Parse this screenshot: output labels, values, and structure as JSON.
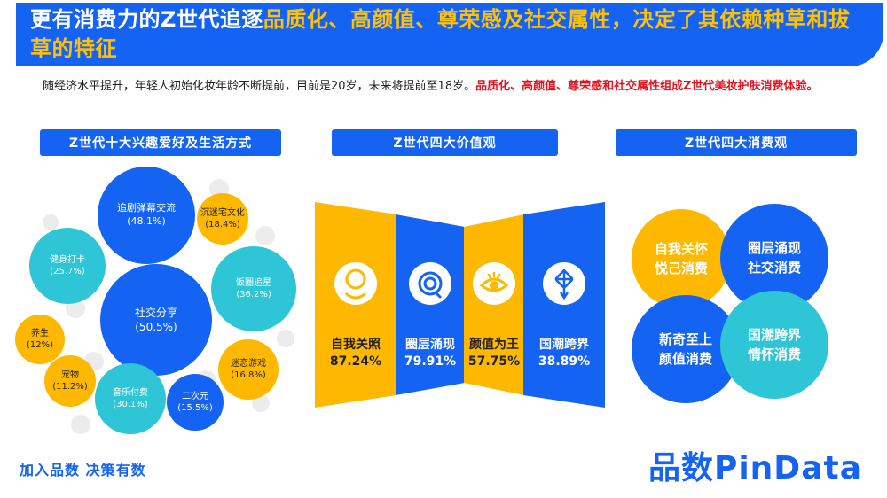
{
  "header": {
    "title_plain": "更有消费力的Z世代追逐",
    "title_highlight": "品质化、高颜值、尊荣感及社交属性，决定了其依赖种草和拔草的特征"
  },
  "intro": {
    "text_plain": "随经济水平提升，年轻人初始化妆年龄不断提前，目前是20岁，未来将提前至18岁。",
    "text_red": "品质化、高颜值、尊荣感和社交属性组成Z世代美妆护肤消费体验。"
  },
  "sections": {
    "hobbies": "Z世代十大兴趣爱好及生活方式",
    "values": "Z世代四大价值观",
    "consumption": "Z世代四大消费观"
  },
  "hobbies": [
    {
      "label": "追剧弹幕交流",
      "value": "(48.1%)",
      "color": "#1463f3"
    },
    {
      "label": "沉迷宅文化",
      "value": "(18.4%)",
      "color": "#ffb800"
    },
    {
      "label": "健身打卡",
      "value": "(25.7%)",
      "color": "#2ec6d6"
    },
    {
      "label": "饭圈追星",
      "value": "(36.2%)",
      "color": "#2ec6d6"
    },
    {
      "label": "社交分享",
      "value": "(50.5%)",
      "color": "#1463f3"
    },
    {
      "label": "养生",
      "value": "(12%)",
      "color": "#ffb800"
    },
    {
      "label": "迷恋游戏",
      "value": "(16.8%)",
      "color": "#ffb800"
    },
    {
      "label": "宠物",
      "value": "(11.2%)",
      "color": "#ffb800"
    },
    {
      "label": "音乐付费",
      "value": "(30.1%)",
      "color": "#2ec6d6"
    },
    {
      "label": "二次元",
      "value": "(15.5%)",
      "color": "#1463f3"
    }
  ],
  "values": [
    {
      "label": "自我关照",
      "value": "87.24%",
      "color": "#ffb800",
      "icon": "smiley-face-icon"
    },
    {
      "label": "圈层涌现",
      "value": "79.91%",
      "color": "#1463f3",
      "icon": "speech-bubble-icon"
    },
    {
      "label": "颜值为王",
      "value": "57.75%",
      "color": "#ffb800",
      "icon": "eye-icon"
    },
    {
      "label": "国潮跨界",
      "value": "38.89%",
      "color": "#1463f3",
      "icon": "chinese-knot-icon"
    }
  ],
  "consumption": [
    {
      "line1": "自我关怀",
      "line2": "悦己消费",
      "color": "#ffb800"
    },
    {
      "line1": "圈层涌现",
      "line2": "社交消费",
      "color": "#1463f3"
    },
    {
      "line1": "新奇至上",
      "line2": "颜值消费",
      "color": "#1463f3"
    },
    {
      "line1": "国潮跨界",
      "line2": "情怀消费",
      "color": "#2ec6d6"
    }
  ],
  "footer": {
    "slogan": "加入品数 决策有数",
    "brand": "品数PinData"
  }
}
